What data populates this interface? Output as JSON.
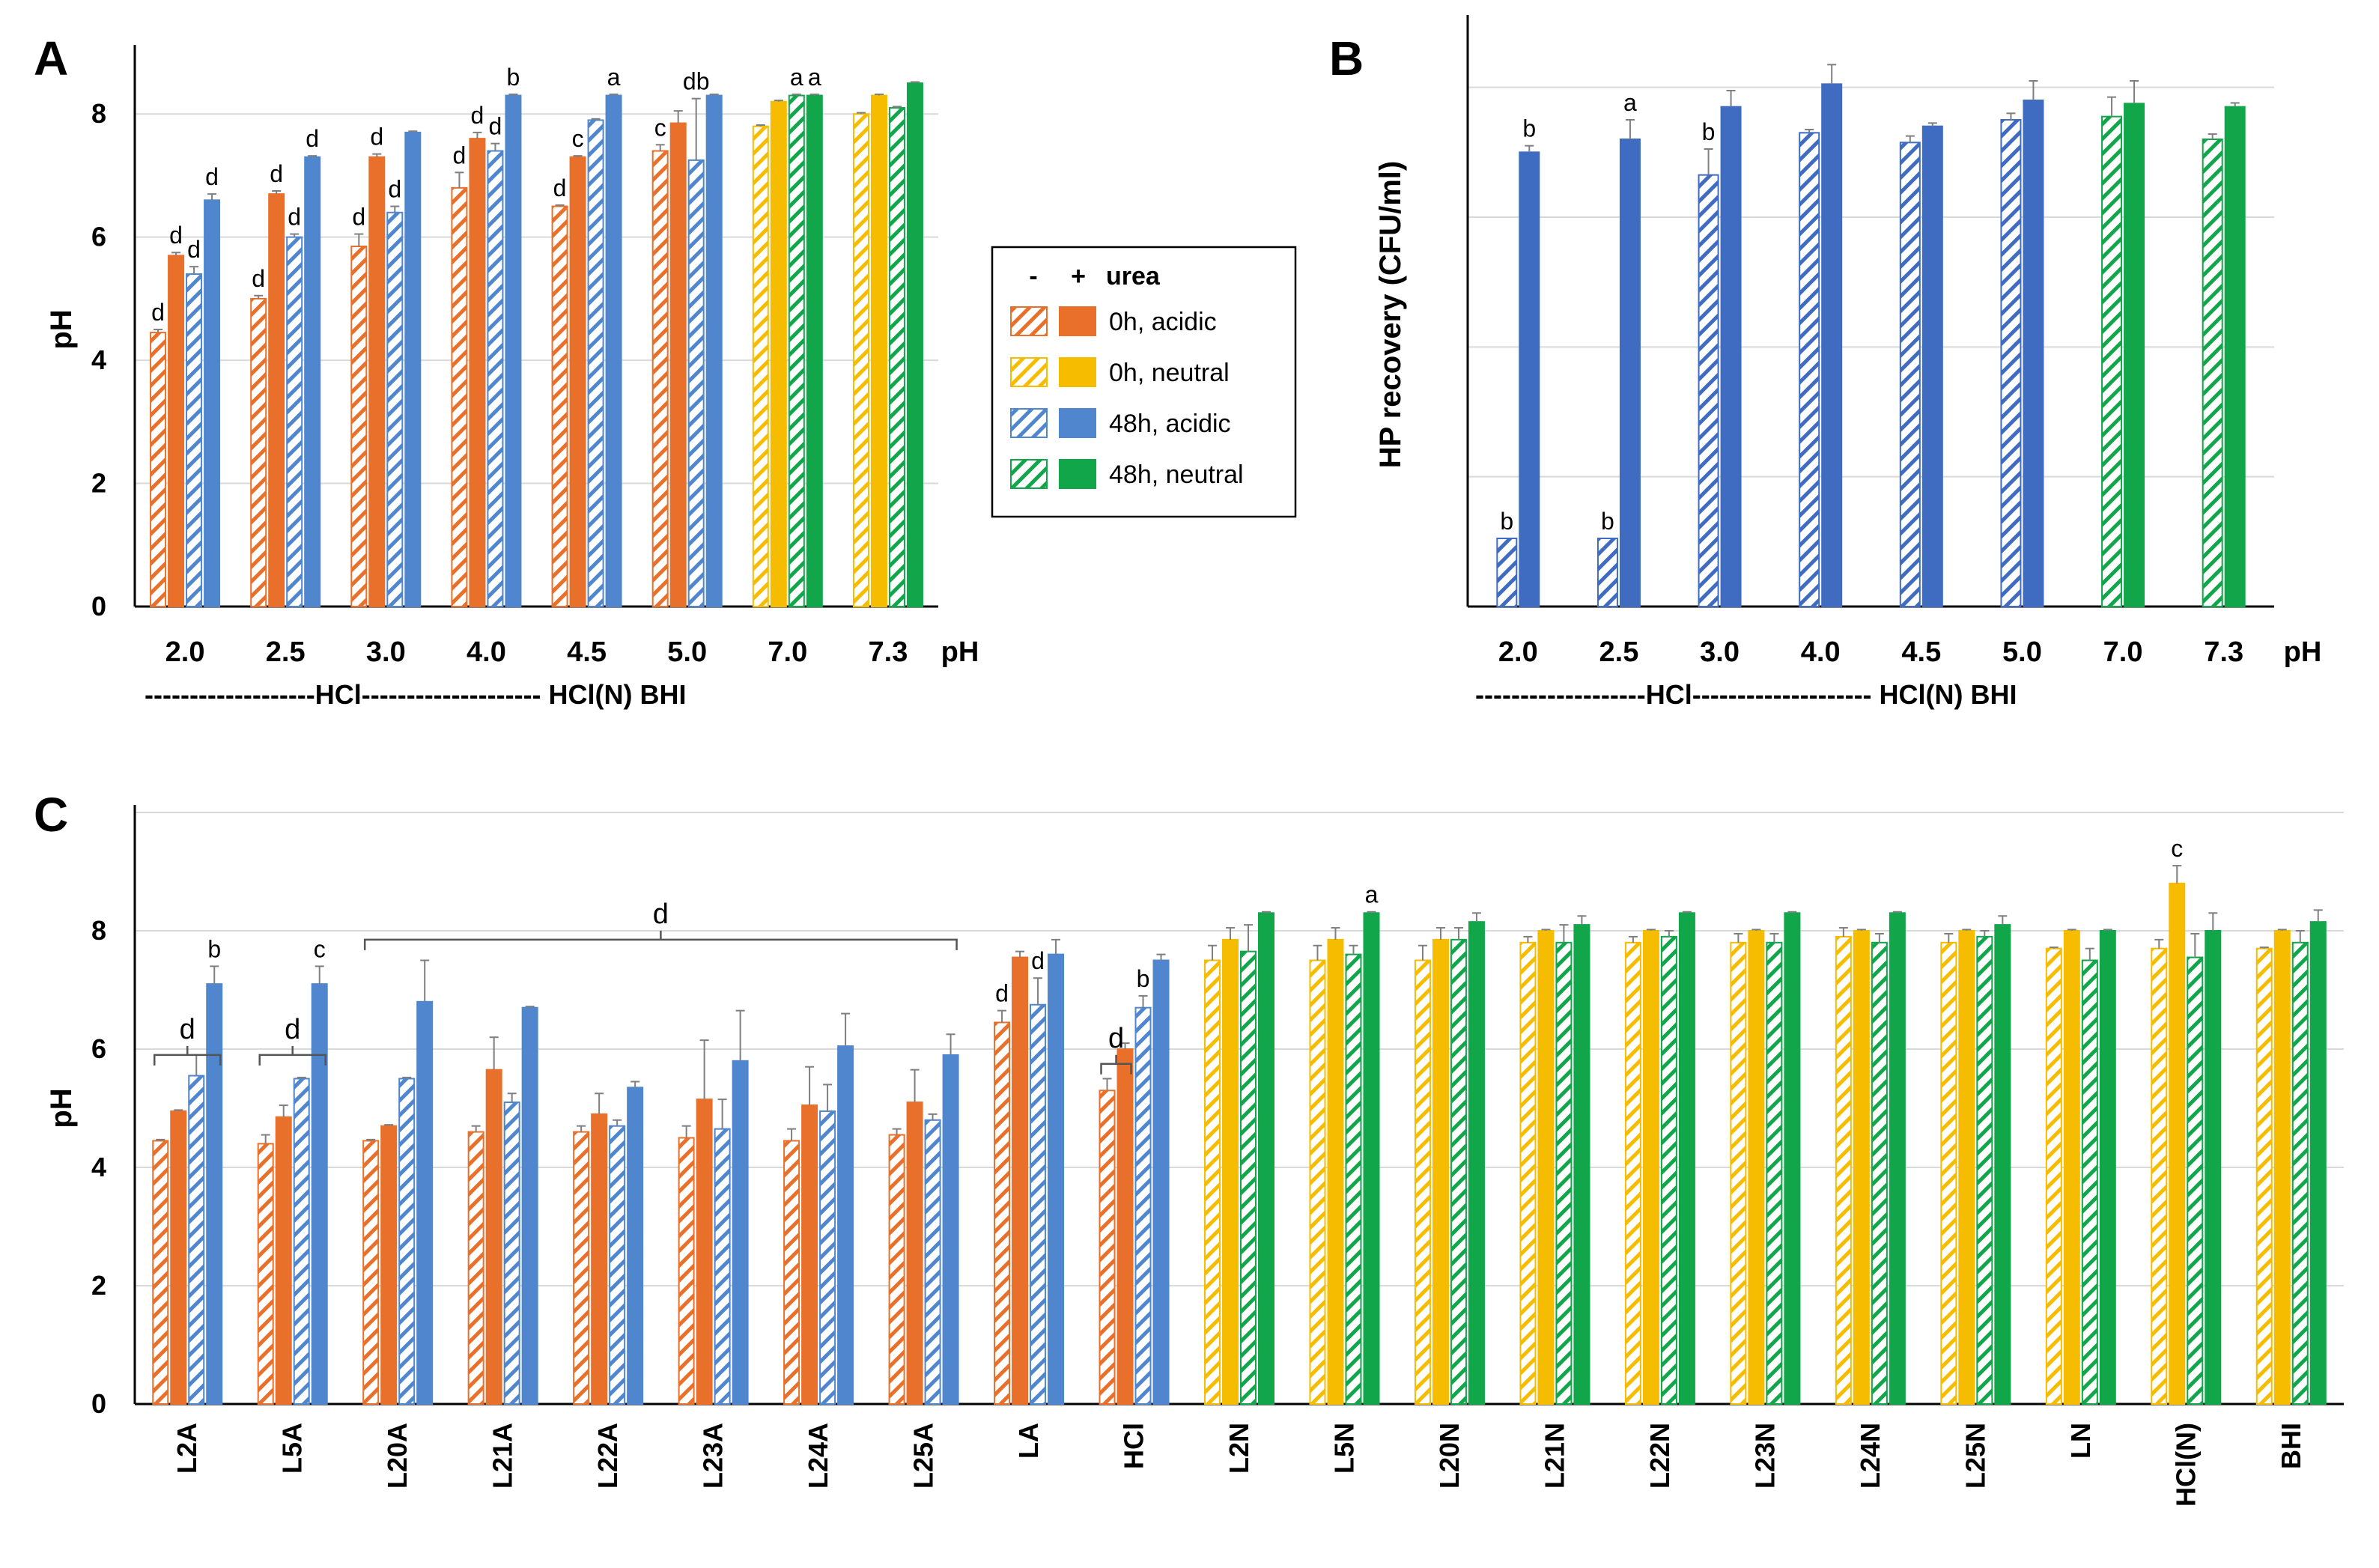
{
  "colors": {
    "orange": "#E8702A",
    "yellow": "#F5BC00",
    "blue": "#4F86CE",
    "blue_dark": "#3F6CC0",
    "green": "#11A64A",
    "grid": "#D9D9D9",
    "axis": "#000000",
    "error": "#7F7F7F"
  },
  "legend": {
    "header_minus": "-",
    "header_plus": "+",
    "header_label": "urea",
    "entries": [
      {
        "label": "0h, acidic",
        "color": "orange"
      },
      {
        "label": "0h, neutral",
        "color": "yellow"
      },
      {
        "label": "48h, acidic",
        "color": "blue"
      },
      {
        "label": "48h, neutral",
        "color": "green"
      }
    ]
  },
  "chart_data": [
    {
      "panel": "A",
      "type": "bar",
      "ylabel": "pH",
      "ylim": [
        0,
        9
      ],
      "yticks": [
        0,
        2,
        4,
        6,
        8
      ],
      "categories": [
        "2.0",
        "2.5",
        "3.0",
        "4.0",
        "4.5",
        "5.0",
        "7.0",
        "7.3"
      ],
      "category_axis_label": "pH",
      "group_line": {
        "text": "-------------------HCl-------------------- HCl(N)  BHI"
      },
      "bar_order": [
        "0h -urea",
        "0h +urea",
        "48h -urea",
        "48h +urea"
      ],
      "groups": [
        {
          "colors": [
            "orange",
            "orange",
            "blue",
            "blue"
          ],
          "values": [
            4.45,
            5.7,
            5.4,
            6.6
          ],
          "errors": [
            0.05,
            0.05,
            0.12,
            0.1
          ],
          "letters": [
            "d",
            "d",
            "d",
            "d"
          ]
        },
        {
          "colors": [
            "orange",
            "orange",
            "blue",
            "blue"
          ],
          "values": [
            5.0,
            6.7,
            6.0,
            7.3
          ],
          "errors": [
            0.05,
            0.05,
            0.05,
            0.02
          ],
          "letters": [
            "d",
            "d",
            "d",
            "d"
          ]
        },
        {
          "colors": [
            "orange",
            "orange",
            "blue",
            "blue"
          ],
          "values": [
            5.85,
            7.3,
            6.4,
            7.7
          ],
          "errors": [
            0.2,
            0.05,
            0.1,
            0.02
          ],
          "letters": [
            "d",
            "d",
            "d",
            ""
          ]
        },
        {
          "colors": [
            "orange",
            "orange",
            "blue",
            "blue"
          ],
          "values": [
            6.8,
            7.6,
            7.4,
            8.3
          ],
          "errors": [
            0.25,
            0.1,
            0.12,
            0.02
          ],
          "letters": [
            "d",
            "d",
            "d",
            "b"
          ]
        },
        {
          "colors": [
            "orange",
            "orange",
            "blue",
            "blue"
          ],
          "values": [
            6.5,
            7.3,
            7.9,
            8.3
          ],
          "errors": [
            0.02,
            0.02,
            0.02,
            0.02
          ],
          "letters": [
            "d",
            "c",
            "",
            "a"
          ]
        },
        {
          "colors": [
            "orange",
            "orange",
            "blue",
            "blue"
          ],
          "values": [
            7.4,
            7.85,
            7.25,
            8.3
          ],
          "errors": [
            0.1,
            0.2,
            1.0,
            0.02
          ],
          "letters": [
            "c",
            "",
            "db",
            ""
          ]
        },
        {
          "colors": [
            "yellow",
            "yellow",
            "green",
            "green"
          ],
          "values": [
            7.8,
            8.2,
            8.3,
            8.3
          ],
          "errors": [
            0.02,
            0.02,
            0.02,
            0.02
          ],
          "letters": [
            "",
            "",
            "a",
            "a"
          ]
        },
        {
          "colors": [
            "yellow",
            "yellow",
            "green",
            "green"
          ],
          "values": [
            8.0,
            8.3,
            8.1,
            8.5
          ],
          "errors": [
            0.02,
            0.02,
            0.02,
            0.02
          ],
          "letters": [
            "",
            "",
            "",
            ""
          ]
        }
      ]
    },
    {
      "panel": "B",
      "type": "bar",
      "ylabel": "HP recovery (CFU/ml)",
      "ylim": [
        0,
        9
      ],
      "yticks": [
        0,
        2,
        4,
        6,
        8
      ],
      "show_tick_labels": false,
      "categories": [
        "2.0",
        "2.5",
        "3.0",
        "4.0",
        "4.5",
        "5.0",
        "7.0",
        "7.3"
      ],
      "category_axis_label": "pH",
      "group_line": {
        "text": "-------------------HCl-------------------- HCl(N)  BHI"
      },
      "bar_order": [
        "48h -urea",
        "48h +urea"
      ],
      "groups": [
        {
          "colors": [
            "blue_dark",
            "blue_dark"
          ],
          "values": [
            1.05,
            7.0
          ],
          "errors": [
            0,
            0.1
          ],
          "letters": [
            "b",
            "b"
          ]
        },
        {
          "colors": [
            "blue_dark",
            "blue_dark"
          ],
          "values": [
            1.05,
            7.2
          ],
          "errors": [
            0,
            0.3
          ],
          "letters": [
            "b",
            "a"
          ]
        },
        {
          "colors": [
            "blue_dark",
            "blue_dark"
          ],
          "values": [
            6.65,
            7.7
          ],
          "errors": [
            0.4,
            0.25
          ],
          "letters": [
            "b",
            ""
          ]
        },
        {
          "colors": [
            "blue_dark",
            "blue_dark"
          ],
          "values": [
            7.3,
            8.05
          ],
          "errors": [
            0.05,
            0.3
          ],
          "letters": [
            "",
            ""
          ]
        },
        {
          "colors": [
            "blue_dark",
            "blue_dark"
          ],
          "values": [
            7.15,
            7.4
          ],
          "errors": [
            0.1,
            0.05
          ],
          "letters": [
            "",
            ""
          ]
        },
        {
          "colors": [
            "blue_dark",
            "blue_dark"
          ],
          "values": [
            7.5,
            7.8
          ],
          "errors": [
            0.1,
            0.3
          ],
          "letters": [
            "",
            ""
          ]
        },
        {
          "colors": [
            "green",
            "green"
          ],
          "values": [
            7.55,
            7.75
          ],
          "errors": [
            0.3,
            0.35
          ],
          "letters": [
            "",
            ""
          ]
        },
        {
          "colors": [
            "green",
            "green"
          ],
          "values": [
            7.2,
            7.7
          ],
          "errors": [
            0.08,
            0.06
          ],
          "letters": [
            "",
            ""
          ]
        }
      ]
    },
    {
      "panel": "C",
      "type": "bar",
      "ylabel": "pH",
      "ylim": [
        0,
        10
      ],
      "yticks": [
        0,
        2,
        4,
        6,
        8
      ],
      "categories": [
        "L2A",
        "L5A",
        "L20A",
        "L21A",
        "L22A",
        "L23A",
        "L24A",
        "L25A",
        "LA",
        "HCl",
        "L2N",
        "L5N",
        "L20N",
        "L21N",
        "L22N",
        "L23N",
        "L24N",
        "L25N",
        "LN",
        "HCl(N)",
        "BHI"
      ],
      "bar_order": [
        "0h -urea",
        "0h +urea",
        "48h -urea",
        "48h +urea"
      ],
      "groups": [
        {
          "colors": [
            "orange",
            "orange",
            "blue",
            "blue"
          ],
          "values": [
            4.45,
            4.95,
            5.55,
            7.1
          ],
          "errors": [
            0.02,
            0.02,
            0.35,
            0.3
          ],
          "letters": [
            "",
            "",
            "",
            "b"
          ]
        },
        {
          "colors": [
            "orange",
            "orange",
            "blue",
            "blue"
          ],
          "values": [
            4.4,
            4.85,
            5.5,
            7.1
          ],
          "errors": [
            0.15,
            0.2,
            0.02,
            0.3
          ],
          "letters": [
            "",
            "",
            "",
            "c"
          ]
        },
        {
          "colors": [
            "orange",
            "orange",
            "blue",
            "blue"
          ],
          "values": [
            4.45,
            4.7,
            5.5,
            6.8
          ],
          "errors": [
            0.02,
            0.02,
            0.02,
            0.7
          ],
          "letters": [
            "",
            "",
            "",
            ""
          ]
        },
        {
          "colors": [
            "orange",
            "orange",
            "blue",
            "blue"
          ],
          "values": [
            4.6,
            5.65,
            5.1,
            6.7
          ],
          "errors": [
            0.1,
            0.55,
            0.15,
            0.02
          ],
          "letters": [
            "",
            "",
            "",
            ""
          ]
        },
        {
          "colors": [
            "orange",
            "orange",
            "blue",
            "blue"
          ],
          "values": [
            4.6,
            4.9,
            4.7,
            5.35
          ],
          "errors": [
            0.1,
            0.35,
            0.1,
            0.1
          ],
          "letters": [
            "",
            "",
            "",
            ""
          ]
        },
        {
          "colors": [
            "orange",
            "orange",
            "blue",
            "blue"
          ],
          "values": [
            4.5,
            5.15,
            4.65,
            5.8
          ],
          "errors": [
            0.2,
            1.0,
            0.5,
            0.85
          ],
          "letters": [
            "",
            "",
            "",
            ""
          ]
        },
        {
          "colors": [
            "orange",
            "orange",
            "blue",
            "blue"
          ],
          "values": [
            4.45,
            5.05,
            4.95,
            6.05
          ],
          "errors": [
            0.2,
            0.65,
            0.45,
            0.55
          ],
          "letters": [
            "",
            "",
            "",
            ""
          ]
        },
        {
          "colors": [
            "orange",
            "orange",
            "blue",
            "blue"
          ],
          "values": [
            4.55,
            5.1,
            4.8,
            5.9
          ],
          "errors": [
            0.1,
            0.55,
            0.1,
            0.35
          ],
          "letters": [
            "",
            "",
            "",
            ""
          ]
        },
        {
          "colors": [
            "orange",
            "orange",
            "blue",
            "blue"
          ],
          "values": [
            6.45,
            7.55,
            6.75,
            7.6
          ],
          "errors": [
            0.2,
            0.1,
            0.45,
            0.25
          ],
          "letters": [
            "d",
            "",
            "d",
            ""
          ]
        },
        {
          "colors": [
            "orange",
            "orange",
            "blue",
            "blue"
          ],
          "values": [
            5.3,
            6.0,
            6.7,
            7.5
          ],
          "errors": [
            0.2,
            0.1,
            0.2,
            0.1
          ],
          "letters": [
            "",
            "",
            "b",
            ""
          ]
        },
        {
          "colors": [
            "yellow",
            "yellow",
            "green",
            "green"
          ],
          "values": [
            7.5,
            7.85,
            7.65,
            8.3
          ],
          "errors": [
            0.25,
            0.2,
            0.45,
            0.02
          ],
          "letters": [
            "",
            "",
            "",
            ""
          ]
        },
        {
          "colors": [
            "yellow",
            "yellow",
            "green",
            "green"
          ],
          "values": [
            7.5,
            7.85,
            7.6,
            8.3
          ],
          "errors": [
            0.25,
            0.2,
            0.15,
            0.02
          ],
          "letters": [
            "",
            "",
            "",
            "a"
          ]
        },
        {
          "colors": [
            "yellow",
            "yellow",
            "green",
            "green"
          ],
          "values": [
            7.5,
            7.85,
            7.85,
            8.15
          ],
          "errors": [
            0.25,
            0.2,
            0.2,
            0.15
          ],
          "letters": [
            "",
            "",
            "",
            ""
          ]
        },
        {
          "colors": [
            "yellow",
            "yellow",
            "green",
            "green"
          ],
          "values": [
            7.8,
            8.0,
            7.8,
            8.1
          ],
          "errors": [
            0.1,
            0.02,
            0.3,
            0.15
          ],
          "letters": [
            "",
            "",
            "",
            ""
          ]
        },
        {
          "colors": [
            "yellow",
            "yellow",
            "green",
            "green"
          ],
          "values": [
            7.8,
            8.0,
            7.9,
            8.3
          ],
          "errors": [
            0.1,
            0.02,
            0.1,
            0.02
          ],
          "letters": [
            "",
            "",
            "",
            ""
          ]
        },
        {
          "colors": [
            "yellow",
            "yellow",
            "green",
            "green"
          ],
          "values": [
            7.8,
            8.0,
            7.8,
            8.3
          ],
          "errors": [
            0.15,
            0.02,
            0.15,
            0.02
          ],
          "letters": [
            "",
            "",
            "",
            ""
          ]
        },
        {
          "colors": [
            "yellow",
            "yellow",
            "green",
            "green"
          ],
          "values": [
            7.9,
            8.0,
            7.8,
            8.3
          ],
          "errors": [
            0.15,
            0.02,
            0.15,
            0.02
          ],
          "letters": [
            "",
            "",
            "",
            ""
          ]
        },
        {
          "colors": [
            "yellow",
            "yellow",
            "green",
            "green"
          ],
          "values": [
            7.8,
            8.0,
            7.9,
            8.1
          ],
          "errors": [
            0.15,
            0.02,
            0.1,
            0.15
          ],
          "letters": [
            "",
            "",
            "",
            ""
          ]
        },
        {
          "colors": [
            "yellow",
            "yellow",
            "green",
            "green"
          ],
          "values": [
            7.7,
            8.0,
            7.5,
            8.0
          ],
          "errors": [
            0.02,
            0.02,
            0.2,
            0.02
          ],
          "letters": [
            "",
            "",
            "",
            ""
          ]
        },
        {
          "colors": [
            "yellow",
            "yellow",
            "green",
            "green"
          ],
          "values": [
            7.7,
            8.8,
            7.55,
            8.0
          ],
          "errors": [
            0.15,
            0.3,
            0.4,
            0.3
          ],
          "letters": [
            "",
            "c",
            "",
            ""
          ]
        },
        {
          "colors": [
            "yellow",
            "yellow",
            "green",
            "green"
          ],
          "values": [
            7.7,
            8.0,
            7.8,
            8.15
          ],
          "errors": [
            0.02,
            0.02,
            0.2,
            0.2
          ],
          "letters": [
            "",
            "",
            "",
            ""
          ]
        }
      ],
      "brackets": [
        {
          "from": [
            0,
            0
          ],
          "to": [
            0,
            3
          ],
          "letter": "d",
          "level": 5.9
        },
        {
          "from": [
            1,
            0
          ],
          "to": [
            1,
            3
          ],
          "letter": "d",
          "level": 5.9
        },
        {
          "from": [
            2,
            0
          ],
          "to": [
            7,
            3
          ],
          "letter": "d",
          "level": 7.85
        },
        {
          "from": [
            9,
            0
          ],
          "to": [
            9,
            1
          ],
          "letter": "d",
          "level": 5.75
        }
      ]
    }
  ]
}
